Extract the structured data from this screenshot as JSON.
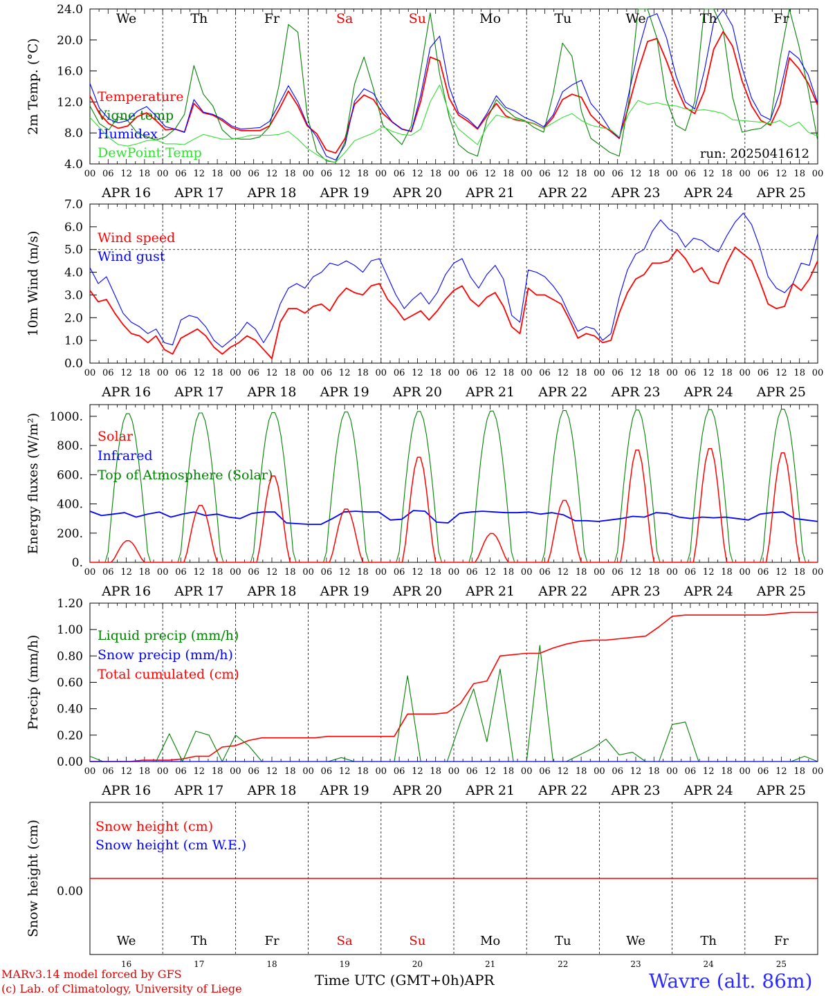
{
  "chart_data": [
    {
      "type": "line",
      "ylabel": "2m Temp. (°C)",
      "ylim": [
        4,
        24
      ],
      "yticks": [
        "4.0",
        "8.0",
        "12.0",
        "16.0",
        "20.0",
        "24.0"
      ],
      "ytick_values": [
        4,
        8,
        12,
        16,
        20,
        24
      ],
      "run_label": "run: 2025041612",
      "legend": [
        {
          "label": "Temperature",
          "color": "#ff0000"
        },
        {
          "label": "Vigne temp",
          "color": "#008000"
        },
        {
          "label": "Humidex",
          "color": "#0000ff"
        },
        {
          "label": "DewPoint Temp",
          "color": "#33dd33"
        }
      ],
      "series": [
        {
          "name": "Temperature",
          "color": "#ff0000",
          "values": [
            12.8,
            10.5,
            9.2,
            8.6,
            8.9,
            10.1,
            10.6,
            9.6,
            8.4,
            8.5,
            8.1,
            11.8,
            10.6,
            10.3,
            9.6,
            8.7,
            8.3,
            8.3,
            8.3,
            8.9,
            11.0,
            13.4,
            11.5,
            8.9,
            7.9,
            5.8,
            5.4,
            7.3,
            11.7,
            12.9,
            12.3,
            10.5,
            9.4,
            8.5,
            8.2,
            12.1,
            17.8,
            17.3,
            12.5,
            10.3,
            9.5,
            8.5,
            10.2,
            11.8,
            10.2,
            9.7,
            9.5,
            9.2,
            8.6,
            10.0,
            12.3,
            13.0,
            12.6,
            10.3,
            9.1,
            8.3,
            7.3,
            11.5,
            16.0,
            19.8,
            20.2,
            17.3,
            14.0,
            11.3,
            10.5,
            13.4,
            18.8,
            21.1,
            19.2,
            14.7,
            11.5,
            9.6,
            9.0,
            11.6,
            17.7,
            16.3,
            14.4,
            11.6
          ]
        },
        {
          "name": "Vigne temp",
          "color": "#008000",
          "values": [
            11.5,
            9.2,
            8.4,
            10.1,
            9.6,
            8.0,
            7.5,
            7.1,
            7.5,
            8.5,
            10.4,
            16.7,
            13.0,
            11.5,
            8.4,
            7.3,
            7.2,
            7.2,
            7.5,
            8.8,
            14.1,
            22.0,
            21.0,
            10.2,
            5.6,
            4.4,
            4.2,
            6.9,
            14.3,
            17.8,
            13.7,
            9.0,
            7.7,
            6.5,
            8.9,
            16.1,
            23.5,
            15.6,
            10.1,
            6.5,
            5.5,
            5.0,
            9.7,
            12.3,
            11.0,
            10.0,
            9.6,
            8.7,
            8.1,
            13.0,
            19.6,
            17.9,
            10.8,
            7.3,
            6.4,
            5.5,
            5.0,
            12.0,
            24.0,
            24.0,
            20.2,
            12.3,
            9.0,
            8.3,
            12.1,
            24.0,
            24.0,
            21.3,
            12.6,
            8.1,
            8.4,
            8.6,
            9.6,
            17.5,
            24.0,
            19.3,
            13.6,
            7.0
          ]
        },
        {
          "name": "Humidex",
          "color": "#0000ff",
          "values": [
            14.4,
            11.2,
            9.8,
            9.3,
            9.6,
            10.8,
            11.4,
            10.2,
            8.8,
            8.5,
            8.1,
            12.3,
            10.7,
            10.4,
            9.8,
            8.9,
            8.5,
            8.6,
            8.7,
            9.5,
            11.7,
            14.1,
            12.0,
            9.1,
            7.5,
            5.0,
            4.5,
            6.5,
            12.1,
            13.7,
            13.1,
            11.1,
            9.4,
            8.5,
            8.2,
            12.9,
            19.0,
            20.5,
            14.0,
            10.6,
            9.8,
            8.6,
            10.5,
            12.8,
            11.3,
            10.8,
            10.0,
            9.5,
            8.8,
            10.3,
            13.3,
            14.2,
            14.8,
            11.8,
            10.4,
            8.5,
            7.3,
            13.0,
            18.5,
            22.9,
            23.4,
            20.3,
            15.4,
            12.0,
            11.1,
            16.0,
            22.3,
            23.9,
            21.8,
            16.4,
            12.5,
            10.3,
            9.7,
            13.3,
            18.6,
            17.6,
            15.5,
            11.8
          ]
        },
        {
          "name": "DewPoint Temp",
          "color": "#33dd33",
          "values": [
            10.0,
            8.7,
            7.4,
            6.5,
            6.3,
            6.6,
            7.0,
            7.1,
            6.6,
            6.6,
            6.5,
            7.2,
            7.8,
            7.5,
            7.2,
            7.2,
            7.4,
            7.7,
            7.7,
            7.7,
            7.8,
            8.2,
            7.2,
            6.0,
            5.2,
            4.5,
            4.2,
            5.5,
            7.0,
            7.5,
            8.0,
            8.8,
            8.2,
            7.8,
            7.7,
            8.5,
            12.0,
            14.2,
            10.6,
            8.5,
            7.5,
            6.5,
            8.8,
            10.3,
            10.0,
            9.8,
            9.5,
            9.2,
            8.6,
            9.3,
            10.0,
            10.5,
            9.6,
            9.0,
            8.7,
            8.5,
            7.5,
            10.5,
            12.2,
            11.7,
            11.9,
            11.6,
            11.5,
            11.1,
            10.9,
            11.0,
            10.8,
            10.5,
            9.7,
            9.6,
            9.5,
            9.4,
            9.2,
            9.6,
            8.8,
            9.4,
            8.1,
            7.6
          ]
        }
      ]
    },
    {
      "type": "line",
      "ylabel": "10m Wind (m/s)",
      "ylim": [
        0,
        7
      ],
      "yticks": [
        "0.0",
        "1.0",
        "2.0",
        "3.0",
        "4.0",
        "5.0",
        "6.0",
        "7.0"
      ],
      "ytick_values": [
        0,
        1,
        2,
        3,
        4,
        5,
        6,
        7
      ],
      "reference_line": 5,
      "legend": [
        {
          "label": "Wind speed",
          "color": "#ff0000"
        },
        {
          "label": "Wind gust",
          "color": "#0000ff"
        }
      ],
      "series": [
        {
          "name": "Wind speed",
          "color": "#ff0000",
          "values": [
            3.2,
            2.7,
            2.8,
            2.2,
            1.7,
            1.3,
            1.2,
            0.9,
            1.2,
            0.6,
            0.4,
            1.1,
            1.3,
            1.5,
            1.2,
            0.7,
            0.4,
            0.7,
            0.9,
            1.2,
            1.0,
            0.6,
            0.2,
            1.8,
            2.4,
            2.4,
            2.2,
            2.5,
            2.6,
            2.3,
            2.9,
            3.3,
            3.1,
            3.0,
            3.4,
            3.5,
            2.8,
            2.4,
            1.9,
            2.1,
            2.3,
            1.9,
            2.3,
            2.8,
            3.2,
            3.4,
            2.8,
            2.5,
            2.9,
            3.1,
            2.5,
            1.6,
            1.3,
            3.3,
            3.0,
            3.0,
            2.8,
            2.6,
            1.9,
            1.1,
            1.3,
            1.2,
            0.9,
            1.0,
            2.2,
            3.1,
            3.7,
            3.9,
            4.4,
            4.4,
            4.5,
            5.0,
            4.6,
            4.0,
            4.2,
            3.6,
            3.5,
            4.4,
            5.1,
            4.8,
            4.5,
            3.6,
            2.6,
            2.4,
            2.5,
            3.5,
            3.2,
            3.7,
            4.5
          ]
        },
        {
          "name": "Wind gust",
          "color": "#0000ff",
          "values": [
            4.2,
            3.5,
            3.8,
            3.0,
            2.2,
            1.8,
            1.6,
            1.3,
            1.5,
            0.9,
            0.8,
            1.9,
            2.1,
            2.0,
            1.6,
            1.0,
            0.7,
            1.0,
            1.3,
            1.8,
            1.5,
            0.9,
            1.5,
            2.6,
            3.3,
            3.5,
            3.3,
            3.8,
            4.0,
            4.4,
            4.3,
            4.5,
            4.3,
            4.0,
            4.5,
            4.6,
            3.8,
            3.0,
            2.4,
            2.8,
            3.1,
            2.6,
            3.1,
            3.9,
            4.4,
            4.6,
            3.8,
            3.3,
            3.9,
            4.3,
            3.7,
            2.1,
            1.8,
            4.1,
            4.0,
            3.8,
            3.4,
            2.9,
            2.1,
            1.4,
            1.6,
            1.5,
            1.0,
            1.3,
            2.9,
            4.1,
            4.8,
            5.0,
            5.8,
            6.3,
            5.9,
            5.7,
            5.1,
            5.5,
            5.4,
            5.1,
            4.9,
            5.6,
            6.2,
            6.6,
            6.1,
            5.1,
            3.8,
            3.3,
            3.1,
            3.5,
            4.4,
            4.3,
            5.7
          ]
        }
      ]
    },
    {
      "type": "line",
      "ylabel": "Energy fluxes (W/m²)",
      "ylim": [
        0,
        1080
      ],
      "yticks": [
        "0.",
        "200.",
        "400.",
        "600.",
        "800.",
        "1000."
      ],
      "ytick_values": [
        0,
        200,
        400,
        600,
        800,
        1000
      ],
      "legend": [
        {
          "label": "Solar",
          "color": "#ff0000"
        },
        {
          "label": "Infrared",
          "color": "#0000ff"
        },
        {
          "label": "Top of Atmosphere (Solar)",
          "color": "#008000"
        }
      ],
      "toa_daily_peak": [
        1025,
        1030,
        1032,
        1036,
        1040,
        1043,
        1046,
        1050,
        1053,
        1056
      ],
      "solar_daily_peak_value": [
        150,
        395,
        600,
        370,
        730,
        200,
        430,
        780,
        790,
        760
      ],
      "infrared": [
        350,
        320,
        330,
        340,
        310,
        330,
        345,
        310,
        330,
        345,
        320,
        330,
        310,
        300,
        335,
        345,
        345,
        270,
        265,
        260,
        260,
        300,
        345,
        350,
        345,
        345,
        290,
        295,
        355,
        350,
        275,
        270,
        335,
        345,
        350,
        345,
        340,
        340,
        345,
        330,
        340,
        325,
        285,
        285,
        280,
        290,
        300,
        315,
        310,
        340,
        335,
        310,
        300,
        310,
        305,
        310,
        300,
        290,
        330,
        340,
        345,
        300,
        290,
        280
      ]
    },
    {
      "type": "line",
      "ylabel": "Precip (mm/h)",
      "ylim": [
        0,
        1.2
      ],
      "yticks": [
        "0.00",
        "0.20",
        "0.40",
        "0.60",
        "0.80",
        "1.00",
        "1.20"
      ],
      "ytick_values": [
        0,
        0.2,
        0.4,
        0.6,
        0.8,
        1.0,
        1.2
      ],
      "legend": [
        {
          "label": "Liquid precip (mm/h)",
          "color": "#008000"
        },
        {
          "label": "Snow precip (mm/h)",
          "color": "#0000ff"
        },
        {
          "label": "Total cumulated (cm)",
          "color": "#ff0000"
        }
      ],
      "series": [
        {
          "name": "Total cumulated (cm)",
          "color": "#ff0000",
          "values": [
            0.0,
            0.0,
            0.0,
            0.0,
            0.01,
            0.01,
            0.01,
            0.02,
            0.04,
            0.04,
            0.11,
            0.12,
            0.16,
            0.18,
            0.18,
            0.18,
            0.18,
            0.18,
            0.19,
            0.19,
            0.19,
            0.19,
            0.19,
            0.19,
            0.36,
            0.36,
            0.36,
            0.37,
            0.44,
            0.59,
            0.61,
            0.8,
            0.81,
            0.82,
            0.82,
            0.86,
            0.89,
            0.91,
            0.92,
            0.92,
            0.93,
            0.94,
            0.95,
            1.02,
            1.1,
            1.11,
            1.11,
            1.11,
            1.11,
            1.11,
            1.11,
            1.11,
            1.12,
            1.13,
            1.13,
            1.13
          ]
        },
        {
          "name": "Liquid precip (mm/h)",
          "color": "#008000",
          "values": [
            0.04,
            0.0,
            0.0,
            0.0,
            0.0,
            0.0,
            0.21,
            0.0,
            0.23,
            0.2,
            0.0,
            0.2,
            0.12,
            0.0,
            0.0,
            0.0,
            0.0,
            0.0,
            0.0,
            0.03,
            0.0,
            0.0,
            0.0,
            0.0,
            0.65,
            0.0,
            0.0,
            0.0,
            0.3,
            0.55,
            0.15,
            0.7,
            0.0,
            0.0,
            0.88,
            0.0,
            0.0,
            0.05,
            0.1,
            0.17,
            0.05,
            0.07,
            0.0,
            0.0,
            0.28,
            0.3,
            0.0,
            0.0,
            0.0,
            0.0,
            0.0,
            0.0,
            0.0,
            0.0,
            0.04,
            0.0
          ]
        }
      ]
    },
    {
      "type": "line",
      "ylabel": "Snow height (cm)",
      "yticks": [
        "0.00"
      ],
      "legend": [
        {
          "label": "Snow height (cm)",
          "color": "#ff0000"
        },
        {
          "label": "Snow height (cm W.E.)",
          "color": "#0000ff"
        }
      ],
      "series": [
        {
          "name": "Snow height (cm)",
          "color": "#ff0000",
          "values": [
            0,
            0,
            0,
            0,
            0,
            0,
            0,
            0,
            0,
            0,
            0
          ]
        }
      ]
    }
  ],
  "x_hour_labels": [
    "00",
    "06",
    "12",
    "18"
  ],
  "x_end_label": "00",
  "date_labels": [
    "APR 16",
    "APR 17",
    "APR 18",
    "APR 19",
    "APR 20",
    "APR 21",
    "APR 22",
    "APR 23",
    "APR 24",
    "APR 25"
  ],
  "weekdays": [
    "We",
    "Th",
    "Fr",
    "Sa",
    "Su",
    "Mo",
    "Tu",
    "We",
    "Th",
    "Fr"
  ],
  "weekday_colors": [
    "#000000",
    "#000000",
    "#000000",
    "#e00000",
    "#e00000",
    "#000000",
    "#000000",
    "#000000",
    "#000000",
    "#000000"
  ],
  "day_numbers": [
    "16",
    "17",
    "18",
    "19",
    "20",
    "21",
    "22",
    "23",
    "24",
    "25"
  ],
  "footer": {
    "model": "MARv3.14 model forced by GFS",
    "credit": "(c) Lab. of Climatology, University of Liege",
    "time_axis": "Time UTC (GMT+0h)",
    "month": "APR",
    "station": "Wavre (alt. 86m)"
  }
}
